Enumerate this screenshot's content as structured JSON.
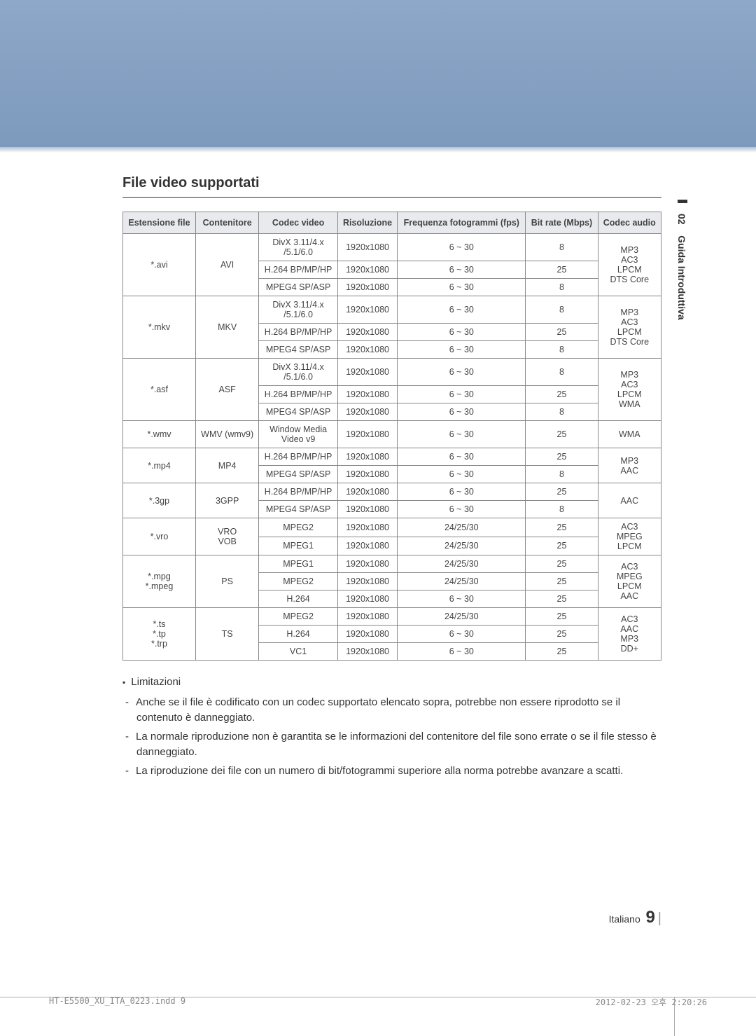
{
  "section_title": "File video supportati",
  "side_tab": {
    "number": "02",
    "label": "Guida Introduttiva"
  },
  "table": {
    "headers": {
      "ext": "Estensione file",
      "container": "Contenitore",
      "vcodec": "Codec video",
      "resolution": "Risoluzione",
      "fps": "Frequenza fotogrammi (fps)",
      "bitrate": "Bit rate (Mbps)",
      "acodec": "Codec audio"
    },
    "groups": [
      {
        "ext": "*.avi",
        "container": "AVI",
        "acodec": "MP3\nAC3\nLPCM\nDTS Core",
        "rows": [
          {
            "vcodec": "DivX 3.11/4.x\n/5.1/6.0",
            "res": "1920x1080",
            "fps": "6 ~ 30",
            "br": "8"
          },
          {
            "vcodec": "H.264 BP/MP/HP",
            "res": "1920x1080",
            "fps": "6 ~ 30",
            "br": "25"
          },
          {
            "vcodec": "MPEG4 SP/ASP",
            "res": "1920x1080",
            "fps": "6 ~ 30",
            "br": "8"
          }
        ]
      },
      {
        "ext": "*.mkv",
        "container": "MKV",
        "acodec": "MP3\nAC3\nLPCM\nDTS Core",
        "rows": [
          {
            "vcodec": "DivX 3.11/4.x\n/5.1/6.0",
            "res": "1920x1080",
            "fps": "6 ~ 30",
            "br": "8"
          },
          {
            "vcodec": "H.264 BP/MP/HP",
            "res": "1920x1080",
            "fps": "6 ~ 30",
            "br": "25"
          },
          {
            "vcodec": "MPEG4 SP/ASP",
            "res": "1920x1080",
            "fps": "6 ~ 30",
            "br": "8"
          }
        ]
      },
      {
        "ext": "*.asf",
        "container": "ASF",
        "acodec": "MP3\nAC3\nLPCM\nWMA",
        "rows": [
          {
            "vcodec": "DivX 3.11/4.x\n/5.1/6.0",
            "res": "1920x1080",
            "fps": "6 ~ 30",
            "br": "8"
          },
          {
            "vcodec": "H.264 BP/MP/HP",
            "res": "1920x1080",
            "fps": "6 ~ 30",
            "br": "25"
          },
          {
            "vcodec": "MPEG4 SP/ASP",
            "res": "1920x1080",
            "fps": "6 ~ 30",
            "br": "8"
          }
        ]
      },
      {
        "ext": "*.wmv",
        "container": "WMV (wmv9)",
        "acodec": "WMA",
        "rows": [
          {
            "vcodec": "Window Media\nVideo v9",
            "res": "1920x1080",
            "fps": "6 ~ 30",
            "br": "25"
          }
        ]
      },
      {
        "ext": "*.mp4",
        "container": "MP4",
        "acodec": "MP3\nAAC",
        "rows": [
          {
            "vcodec": "H.264 BP/MP/HP",
            "res": "1920x1080",
            "fps": "6 ~ 30",
            "br": "25"
          },
          {
            "vcodec": "MPEG4 SP/ASP",
            "res": "1920x1080",
            "fps": "6 ~ 30",
            "br": "8"
          }
        ]
      },
      {
        "ext": "*.3gp",
        "container": "3GPP",
        "acodec": "AAC",
        "rows": [
          {
            "vcodec": "H.264 BP/MP/HP",
            "res": "1920x1080",
            "fps": "6 ~ 30",
            "br": "25"
          },
          {
            "vcodec": "MPEG4 SP/ASP",
            "res": "1920x1080",
            "fps": "6 ~ 30",
            "br": "8"
          }
        ]
      },
      {
        "ext": "*.vro",
        "container": "VRO\nVOB",
        "acodec": "AC3\nMPEG\nLPCM",
        "rows": [
          {
            "vcodec": "MPEG2",
            "res": "1920x1080",
            "fps": "24/25/30",
            "br": "25"
          },
          {
            "vcodec": "MPEG1",
            "res": "1920x1080",
            "fps": "24/25/30",
            "br": "25"
          }
        ]
      },
      {
        "ext": "*.mpg\n*.mpeg",
        "container": "PS",
        "acodec": "AC3\nMPEG\nLPCM\nAAC",
        "rows": [
          {
            "vcodec": "MPEG1",
            "res": "1920x1080",
            "fps": "24/25/30",
            "br": "25"
          },
          {
            "vcodec": "MPEG2",
            "res": "1920x1080",
            "fps": "24/25/30",
            "br": "25"
          },
          {
            "vcodec": "H.264",
            "res": "1920x1080",
            "fps": "6 ~ 30",
            "br": "25"
          }
        ]
      },
      {
        "ext": "*.ts\n*.tp\n*.trp",
        "container": "TS",
        "acodec": "AC3\nAAC\nMP3\nDD+",
        "rows": [
          {
            "vcodec": "MPEG2",
            "res": "1920x1080",
            "fps": "24/25/30",
            "br": "25"
          },
          {
            "vcodec": "H.264",
            "res": "1920x1080",
            "fps": "6 ~ 30",
            "br": "25"
          },
          {
            "vcodec": "VC1",
            "res": "1920x1080",
            "fps": "6 ~ 30",
            "br": "25"
          }
        ]
      }
    ]
  },
  "limitations": {
    "title": "Limitazioni",
    "items": [
      "Anche se il file è codificato con un codec supportato elencato sopra, potrebbe non essere riprodotto se il contenuto è danneggiato.",
      "La normale riproduzione non è garantita se le informazioni del contenitore del file sono errate o se il file stesso è danneggiato.",
      "La riproduzione dei file con un numero di bit/fotogrammi superiore alla norma potrebbe avanzare a scatti."
    ]
  },
  "page": {
    "lang": "Italiano",
    "number": "9"
  },
  "footer": {
    "left": "HT-E5500_XU_ITA_0223.indd   9",
    "right": "2012-02-23   오후 2:20:26"
  }
}
